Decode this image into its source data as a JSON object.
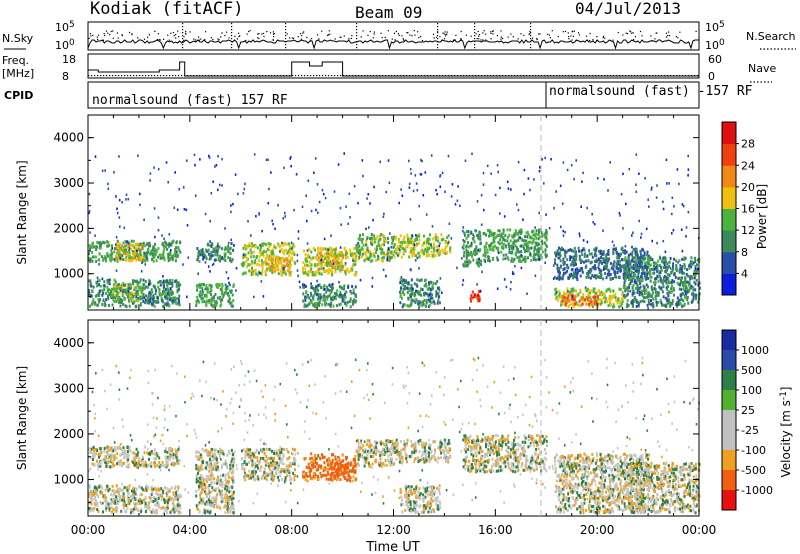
{
  "header": {
    "station": "Kodiak (fitACF)",
    "beam": "Beam 09",
    "date": "04/Jul/2013"
  },
  "top_panels": {
    "nsky_label": "N.Sky",
    "nsky_ticks": [
      "10^5",
      "10^0"
    ],
    "nsearch_label": "N.Search",
    "nsearch_ticks": [
      "10^5",
      "10^0"
    ],
    "freq_label": "Freq.",
    "freq_unit": "[MHz]",
    "freq_ticks": [
      "18",
      "8"
    ],
    "nave_label": "Nave",
    "nave_ticks": [
      "60",
      "0"
    ],
    "cpid_label": "CPID",
    "cpid_segments": [
      "normalsound (fast) 157 RF",
      "normalsound (fast) -157 RF"
    ]
  },
  "colors": {
    "power_scale": [
      "#0a1edc",
      "#2850a8",
      "#3c8a5c",
      "#4cb43c",
      "#f0c010",
      "#f08818",
      "#f04010",
      "#e01010"
    ],
    "velocity_scale": [
      "#e61010",
      "#f06010",
      "#f0a020",
      "#c0c0c0",
      "#c0c0c0",
      "#50b030",
      "#2e8048",
      "#2a4aa8",
      "#1a2aa0"
    ]
  },
  "x_axis": {
    "label": "Time UT",
    "ticks": [
      "00:00",
      "04:00",
      "08:00",
      "12:00",
      "16:00",
      "20:00",
      "00:00"
    ]
  },
  "chart_data": [
    {
      "type": "heatmap",
      "quantity": "Power",
      "ylabel": "Slant Range [km]",
      "yticks": [
        "1000",
        "2000",
        "3000",
        "4000"
      ],
      "ylim": [
        200,
        4500
      ],
      "xlim_hours": [
        0,
        24
      ],
      "colorbar": {
        "label": "Power [dB]",
        "ticks": [
          "4",
          "8",
          "12",
          "16",
          "20",
          "24",
          "28"
        ],
        "range": [
          0,
          32
        ]
      },
      "echo_bands": [
        {
          "x": [
            0.0,
            3.6
          ],
          "y": [
            1300,
            1750
          ],
          "power": 12
        },
        {
          "x": [
            0.0,
            3.6
          ],
          "y": [
            300,
            900
          ],
          "power": 10
        },
        {
          "x": [
            1.0,
            2.2
          ],
          "y": [
            1300,
            1700
          ],
          "power": 18
        },
        {
          "x": [
            0.9,
            2.1
          ],
          "y": [
            400,
            800
          ],
          "power": 14
        },
        {
          "x": [
            4.2,
            5.7
          ],
          "y": [
            1300,
            1700
          ],
          "power": 10
        },
        {
          "x": [
            4.2,
            5.7
          ],
          "y": [
            300,
            800
          ],
          "power": 12
        },
        {
          "x": [
            6.0,
            8.1
          ],
          "y": [
            1000,
            1700
          ],
          "power": 16
        },
        {
          "x": [
            7.0,
            8.0
          ],
          "y": [
            1100,
            1400
          ],
          "power": 20
        },
        {
          "x": [
            8.4,
            10.5
          ],
          "y": [
            1000,
            1600
          ],
          "power": 16
        },
        {
          "x": [
            9.0,
            10.0
          ],
          "y": [
            1100,
            1500
          ],
          "power": 18
        },
        {
          "x": [
            8.4,
            10.5
          ],
          "y": [
            300,
            800
          ],
          "power": 10
        },
        {
          "x": [
            10.5,
            12.0
          ],
          "y": [
            1300,
            1900
          ],
          "power": 14
        },
        {
          "x": [
            12.0,
            14.2
          ],
          "y": [
            1400,
            1900
          ],
          "power": 16
        },
        {
          "x": [
            12.2,
            13.8
          ],
          "y": [
            300,
            900
          ],
          "power": 10
        },
        {
          "x": [
            14.7,
            15.4
          ],
          "y": [
            1200,
            2000
          ],
          "power": 12
        },
        {
          "x": [
            14.9,
            15.4
          ],
          "y": [
            400,
            650
          ],
          "power": 28
        },
        {
          "x": [
            15.5,
            18.0
          ],
          "y": [
            1300,
            2000
          ],
          "power": 12
        },
        {
          "x": [
            18.3,
            22.0
          ],
          "y": [
            900,
            1600
          ],
          "power": 8
        },
        {
          "x": [
            18.3,
            21.0
          ],
          "y": [
            300,
            700
          ],
          "power": 16
        },
        {
          "x": [
            18.5,
            20.0
          ],
          "y": [
            350,
            550
          ],
          "power": 24
        },
        {
          "x": [
            21.0,
            24.0
          ],
          "y": [
            300,
            1400
          ],
          "power": 10
        }
      ]
    },
    {
      "type": "heatmap",
      "quantity": "Velocity",
      "ylabel": "Slant Range [km]",
      "yticks": [
        "1000",
        "2000",
        "3000",
        "4000"
      ],
      "ylim": [
        200,
        4500
      ],
      "xlim_hours": [
        0,
        24
      ],
      "colorbar": {
        "label": "Velocity [m s^-1]",
        "ticks": [
          "1000",
          "500",
          "100",
          "25",
          "-25",
          "-100",
          "-500",
          "-1000"
        ],
        "range": [
          -1250,
          1250
        ]
      },
      "echo_bands": [
        {
          "x": [
            0.0,
            3.6
          ],
          "y": [
            1300,
            1750
          ],
          "velocity": 0
        },
        {
          "x": [
            0.0,
            3.6
          ],
          "y": [
            300,
            900
          ],
          "velocity": 0
        },
        {
          "x": [
            4.2,
            5.7
          ],
          "y": [
            300,
            1700
          ],
          "velocity": 0
        },
        {
          "x": [
            6.0,
            8.1
          ],
          "y": [
            1000,
            1700
          ],
          "velocity": 0
        },
        {
          "x": [
            8.4,
            10.5
          ],
          "y": [
            1000,
            1600
          ],
          "velocity": -120
        },
        {
          "x": [
            9.5,
            10.5
          ],
          "y": [
            1100,
            1400
          ],
          "velocity": -200
        },
        {
          "x": [
            10.5,
            12.0
          ],
          "y": [
            1300,
            1900
          ],
          "velocity": 0
        },
        {
          "x": [
            12.0,
            14.2
          ],
          "y": [
            1400,
            1900
          ],
          "velocity": 0
        },
        {
          "x": [
            12.2,
            13.8
          ],
          "y": [
            300,
            900
          ],
          "velocity": 0
        },
        {
          "x": [
            14.7,
            18.0
          ],
          "y": [
            1200,
            2000
          ],
          "velocity": 0
        },
        {
          "x": [
            18.3,
            22.0
          ],
          "y": [
            300,
            1600
          ],
          "velocity": 0
        },
        {
          "x": [
            21.0,
            24.0
          ],
          "y": [
            300,
            1400
          ],
          "velocity": 0
        }
      ]
    }
  ]
}
